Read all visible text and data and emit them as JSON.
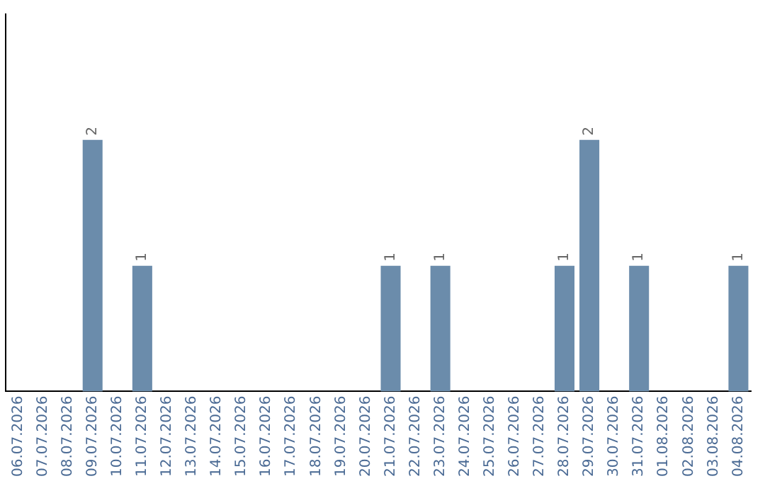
{
  "chart_data": {
    "type": "bar",
    "categories": [
      "06.07.2026",
      "07.07.2026",
      "08.07.2026",
      "09.07.2026",
      "10.07.2026",
      "11.07.2026",
      "12.07.2026",
      "13.07.2026",
      "14.07.2026",
      "15.07.2026",
      "16.07.2026",
      "17.07.2026",
      "18.07.2026",
      "19.07.2026",
      "20.07.2026",
      "21.07.2026",
      "22.07.2026",
      "23.07.2026",
      "24.07.2026",
      "25.07.2026",
      "26.07.2026",
      "27.07.2026",
      "28.07.2026",
      "29.07.2026",
      "30.07.2026",
      "31.07.2026",
      "01.08.2026",
      "02.08.2026",
      "03.08.2026",
      "04.08.2026"
    ],
    "values": [
      0,
      0,
      0,
      2,
      0,
      1,
      0,
      0,
      0,
      0,
      0,
      0,
      0,
      0,
      0,
      1,
      0,
      1,
      0,
      0,
      0,
      0,
      1,
      2,
      0,
      1,
      0,
      0,
      0,
      1
    ],
    "value_labels": [
      null,
      null,
      null,
      "2",
      null,
      "1",
      null,
      null,
      null,
      null,
      null,
      null,
      null,
      null,
      null,
      "1",
      null,
      "1",
      null,
      null,
      null,
      null,
      "1",
      "2",
      null,
      "1",
      null,
      null,
      null,
      "1"
    ],
    "color": "#6b8cab",
    "grid": false,
    "legend": false
  }
}
